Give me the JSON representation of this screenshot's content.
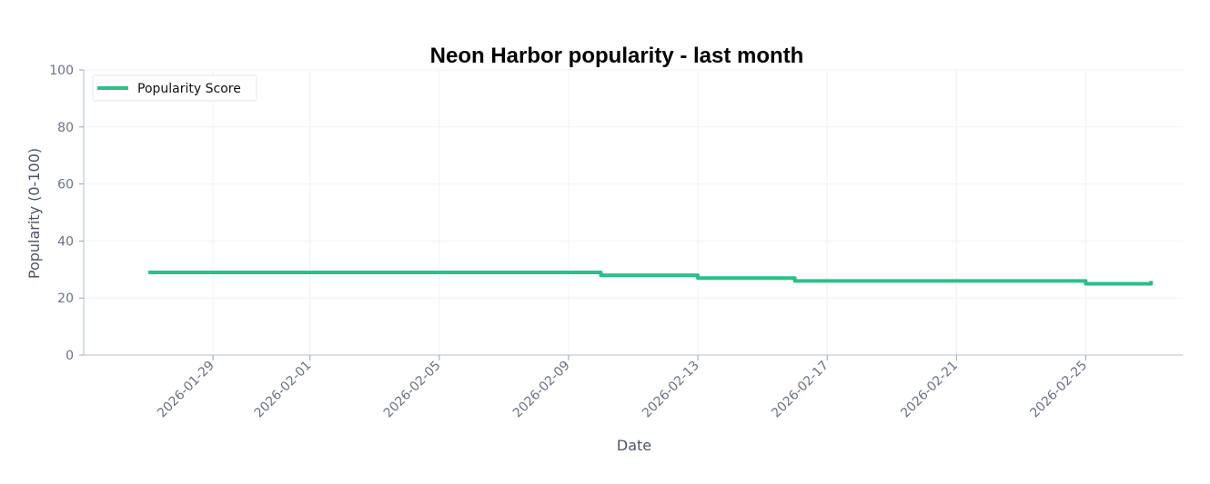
{
  "chart_data": {
    "type": "line",
    "title": "Neon Harbor popularity - last month",
    "xlabel": "Date",
    "ylabel": "Popularity (0-100)",
    "ylim": [
      0,
      100
    ],
    "yticks": [
      0,
      20,
      40,
      60,
      80,
      100
    ],
    "xlim": [
      "2026-01-25",
      "2026-02-28"
    ],
    "xticks": [
      "2026-01-29",
      "2026-02-01",
      "2026-02-05",
      "2026-02-09",
      "2026-02-13",
      "2026-02-17",
      "2026-02-21",
      "2026-02-25"
    ],
    "grid": true,
    "legend_position": "top-left",
    "series": [
      {
        "name": "Popularity Score",
        "color": "#2bbf8a",
        "x": [
          "2026-01-27",
          "2026-02-09",
          "2026-02-10",
          "2026-02-11",
          "2026-02-12",
          "2026-02-13",
          "2026-02-14",
          "2026-02-15",
          "2026-02-16",
          "2026-02-17",
          "2026-02-18",
          "2026-02-19",
          "2026-02-20",
          "2026-02-21",
          "2026-02-22",
          "2026-02-23",
          "2026-02-24",
          "2026-02-25",
          "2026-02-26",
          "2026-02-27",
          "2026-02-27T00:30"
        ],
        "y": [
          29,
          29,
          28,
          28,
          28,
          27,
          27,
          27,
          26,
          26,
          26,
          26,
          26,
          26,
          26,
          26,
          26,
          25,
          25,
          25,
          26
        ]
      }
    ]
  }
}
